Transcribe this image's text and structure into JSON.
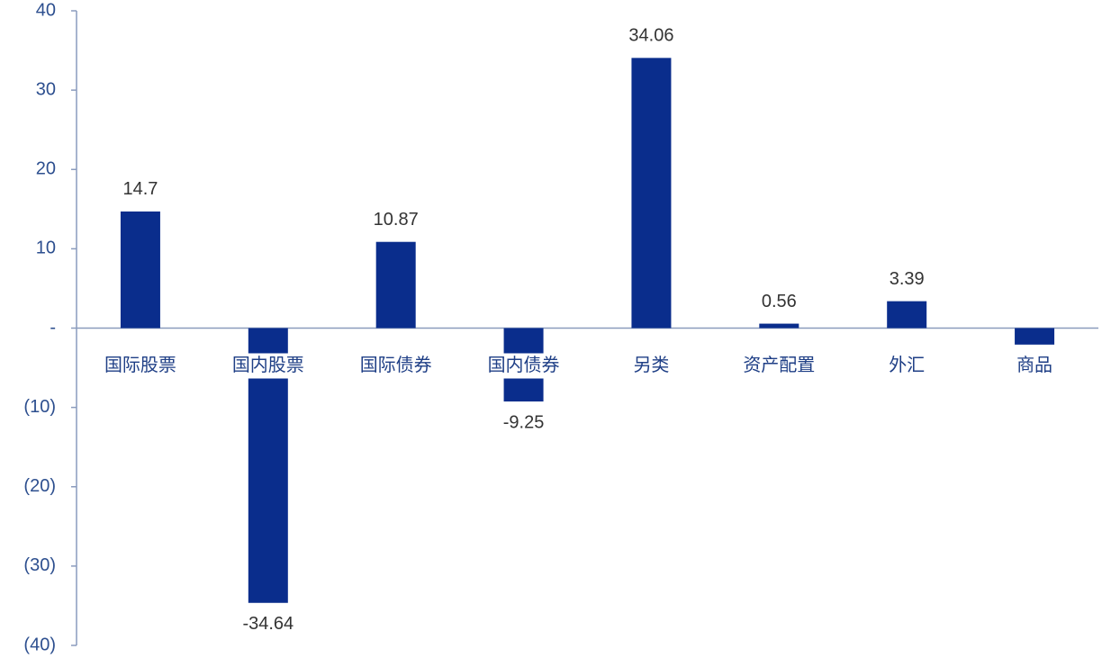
{
  "chart_data": {
    "type": "bar",
    "categories": [
      "国际股票",
      "国内股票",
      "国际债券",
      "国内债券",
      "另类",
      "资产配置",
      "外汇",
      "商品"
    ],
    "values": [
      14.7,
      -34.64,
      10.87,
      -9.25,
      34.06,
      0.56,
      3.39,
      -2.08
    ],
    "color": "#0a2d8c",
    "ylim": [
      -40,
      40
    ],
    "yticks": [
      {
        "value": -40,
        "label": "(40)"
      },
      {
        "value": -30,
        "label": "(30)"
      },
      {
        "value": -20,
        "label": "(20)"
      },
      {
        "value": -10,
        "label": "(10)"
      },
      {
        "value": 0,
        "label": "-"
      },
      10,
      20,
      30,
      40
    ]
  }
}
